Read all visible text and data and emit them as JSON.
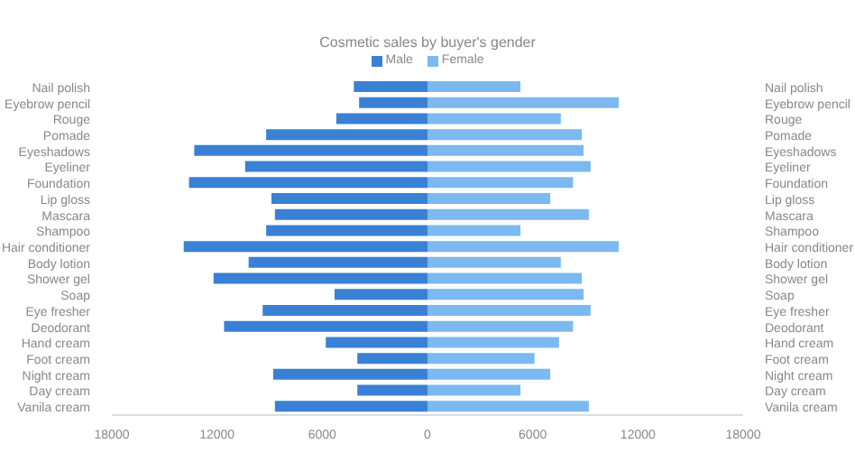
{
  "chart_data": {
    "type": "bar",
    "title": "Cosmetic sales by buyer's gender",
    "orientation": "horizontal",
    "stacked": true,
    "legend": "top",
    "categories": [
      "Nail polish",
      "Eyebrow pencil",
      "Rouge",
      "Pomade",
      "Eyeshadows",
      "Eyeliner",
      "Foundation",
      "Lip gloss",
      "Mascara",
      "Shampoo",
      "Hair conditioner",
      "Body lotion",
      "Shower gel",
      "Soap",
      "Eye fresher",
      "Deodorant",
      "Hand cream",
      "Foot cream",
      "Night cream",
      "Day cream",
      "Vanila cream"
    ],
    "series": [
      {
        "name": "Male",
        "color": "#3a80d4",
        "values": [
          -4200,
          -3900,
          -5200,
          -9200,
          -13300,
          -10400,
          -13600,
          -8900,
          -8700,
          -9200,
          -13900,
          -10200,
          -12200,
          -5300,
          -9400,
          -11600,
          -5800,
          -4000,
          -8800,
          -4000,
          -8700
        ]
      },
      {
        "name": "Female",
        "color": "#7bb9f0",
        "values": [
          5300,
          10900,
          7600,
          8800,
          8900,
          9300,
          8300,
          7000,
          9200,
          5300,
          10900,
          7600,
          8800,
          8900,
          9300,
          8300,
          7500,
          6100,
          7000,
          5300,
          9200
        ]
      }
    ],
    "xlim": [
      -18000,
      18000
    ],
    "xticks": [
      {
        "value": -18000,
        "label": "18000"
      },
      {
        "value": -12000,
        "label": "12000"
      },
      {
        "value": -6000,
        "label": "6000"
      },
      0,
      6000,
      12000,
      18000
    ]
  }
}
